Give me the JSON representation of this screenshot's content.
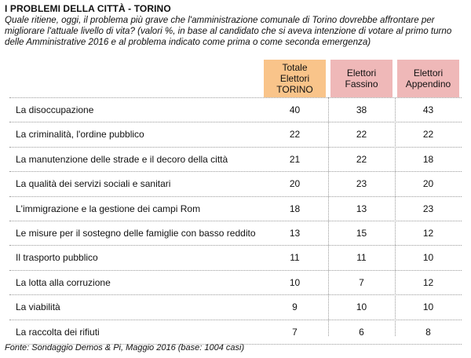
{
  "header": {
    "title": "I PROBLEMI DELLA CITTÀ - TORINO",
    "subtitle": "Quale ritiene, oggi, il problema più grave che l'amministrazione comunale di Torino dovrebbe affrontare per migliorare l'attuale livello di vita? (valori %, in base al candidato che si aveva intenzione di votare al primo turno delle Amministrative 2016 e al problema indicato come prima o come seconda emergenza)"
  },
  "columns": [
    {
      "lines": [
        "Totale",
        "Elettori",
        "TORINO"
      ],
      "color": "#f9c48a"
    },
    {
      "lines": [
        "Elettori",
        "Fassino"
      ],
      "color": "#efb8b8"
    },
    {
      "lines": [
        "Elettori",
        "Appendino"
      ],
      "color": "#efb8b8"
    }
  ],
  "chart_data": {
    "type": "table",
    "title": "I PROBLEMI DELLA CITTÀ - TORINO",
    "categories": [
      "La disoccupazione",
      "La criminalità, l'ordine pubblico",
      "La manutenzione delle strade e il decoro della città",
      "La qualità dei servizi sociali e sanitari",
      "L'immigrazione e la gestione dei campi Rom",
      "Le misure per il sostegno delle famiglie con basso reddito",
      "Il trasporto pubblico",
      "La lotta alla corruzione",
      "La viabilità",
      "La raccolta dei rifiuti"
    ],
    "series": [
      {
        "name": "Totale Elettori TORINO",
        "values": [
          40,
          22,
          21,
          20,
          18,
          13,
          11,
          10,
          9,
          7
        ]
      },
      {
        "name": "Elettori Fassino",
        "values": [
          38,
          22,
          22,
          23,
          13,
          15,
          11,
          7,
          10,
          6
        ]
      },
      {
        "name": "Elettori Appendino",
        "values": [
          43,
          22,
          18,
          20,
          23,
          12,
          10,
          12,
          10,
          8
        ]
      }
    ]
  },
  "footer": {
    "source": "Fonte: Sondaggio Demos & Pi, Maggio 2016 (base: 1004 casi)"
  }
}
